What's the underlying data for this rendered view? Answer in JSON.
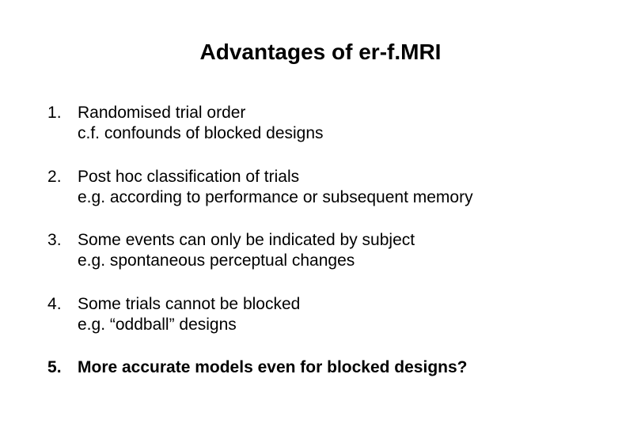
{
  "title": "Advantages of er-f.MRI",
  "items": [
    {
      "line1": "Randomised trial order",
      "line2": "c.f. confounds of blocked designs",
      "bold": false
    },
    {
      "line1": "Post hoc classification of trials",
      "line2": "e.g. according to performance or subsequent memory",
      "bold": false
    },
    {
      "line1": "Some events can only be indicated by subject",
      "line2": "e.g. spontaneous perceptual changes",
      "bold": false
    },
    {
      "line1": "Some trials cannot be blocked",
      "line2": "e.g. “oddball” designs",
      "bold": false
    },
    {
      "line1": "More accurate models even for blocked designs?",
      "line2": "",
      "bold": true
    }
  ]
}
